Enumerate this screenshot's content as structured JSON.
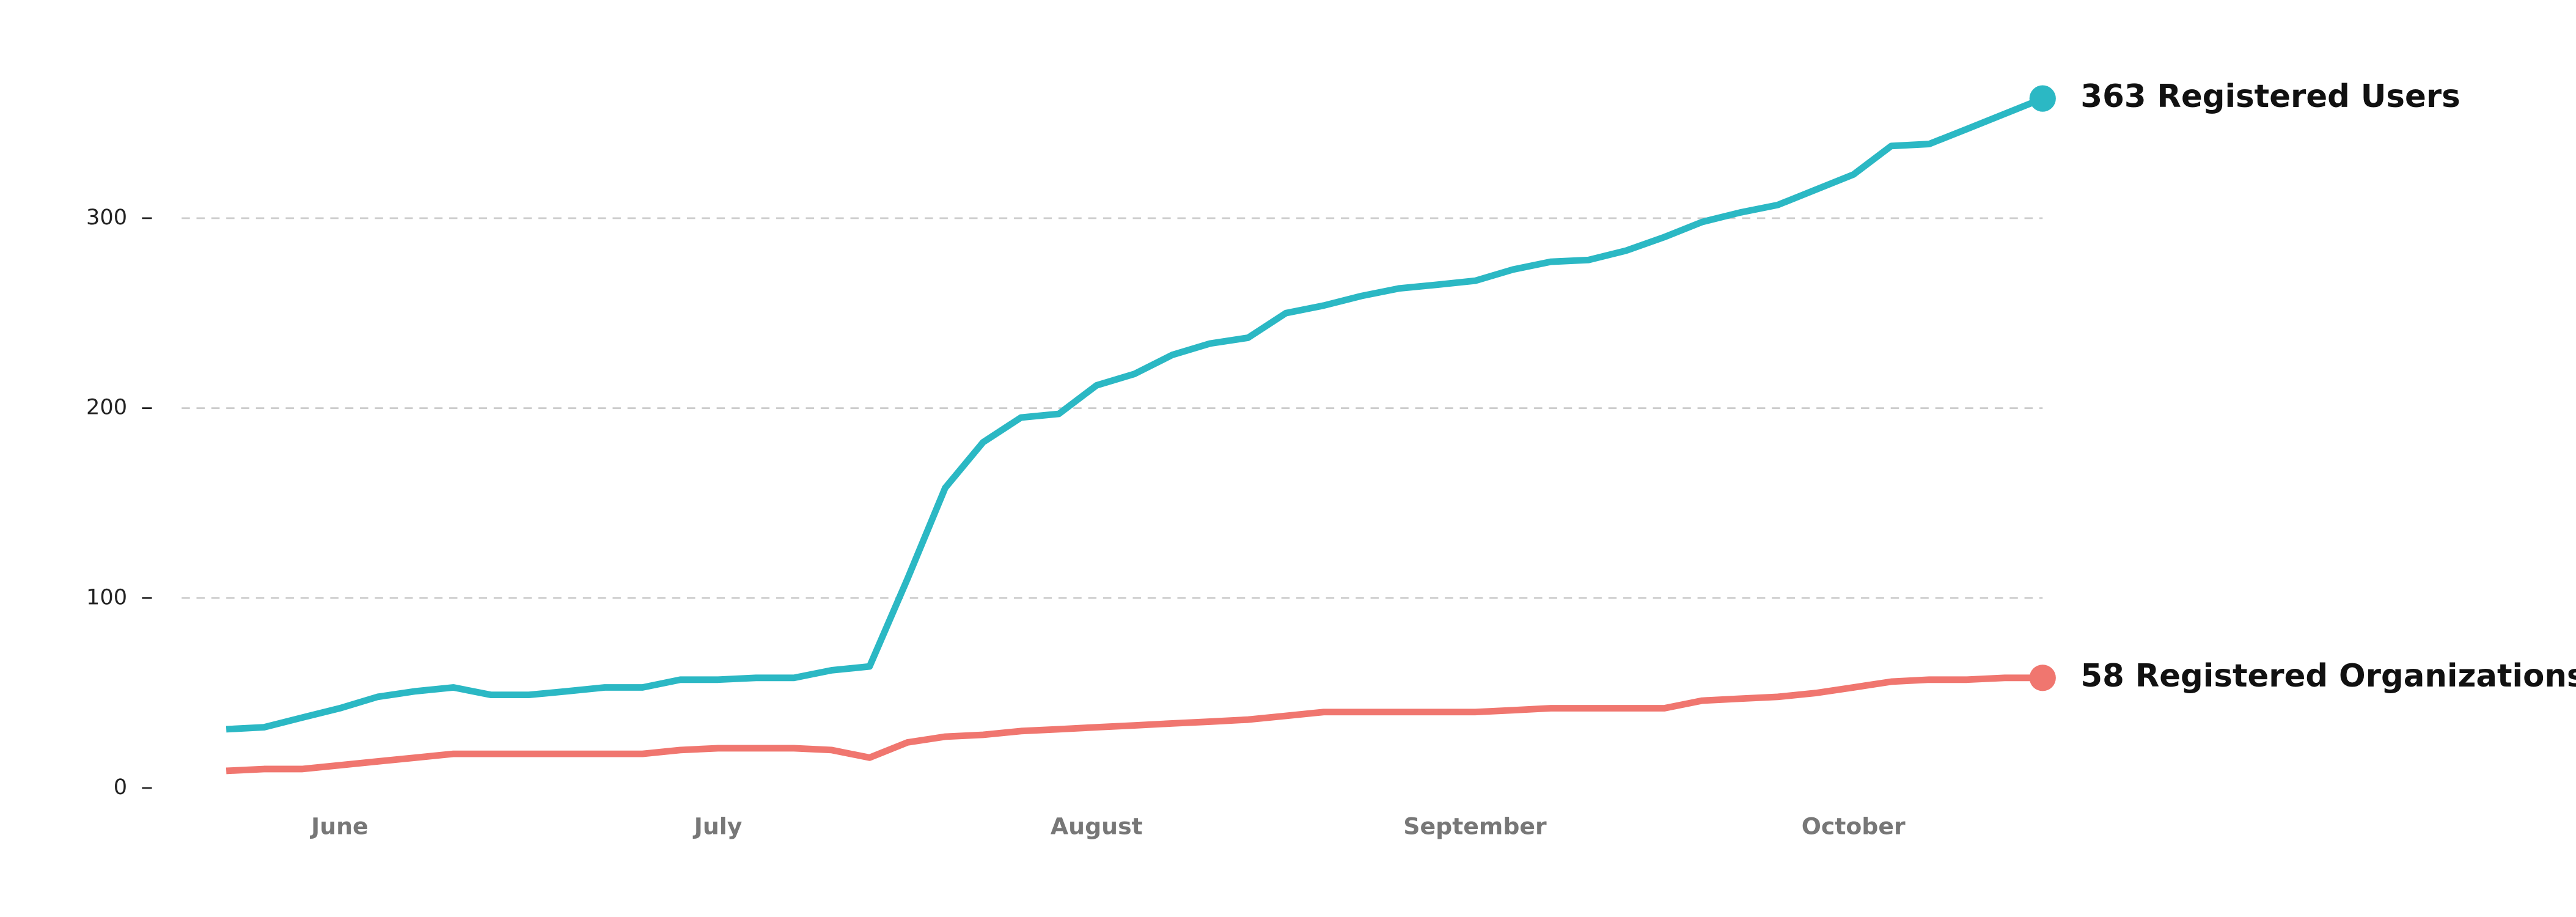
{
  "chart_data": {
    "type": "line",
    "categories": [
      null,
      null,
      null,
      "June",
      null,
      null,
      null,
      null,
      null,
      null,
      null,
      null,
      null,
      "July",
      null,
      null,
      null,
      null,
      null,
      null,
      null,
      null,
      null,
      "August",
      null,
      null,
      null,
      null,
      null,
      null,
      null,
      null,
      null,
      "September",
      null,
      null,
      null,
      null,
      null,
      null,
      null,
      null,
      null,
      "October",
      null,
      null,
      null,
      null,
      null
    ],
    "series": [
      {
        "name": "363 Registered Users",
        "color": "#2bb8c4",
        "values": [
          31,
          32,
          37,
          42,
          48,
          51,
          53,
          49,
          49,
          51,
          53,
          53,
          57,
          57,
          58,
          58,
          62,
          64,
          110,
          158,
          182,
          195,
          197,
          212,
          218,
          228,
          234,
          237,
          250,
          254,
          259,
          263,
          265,
          267,
          273,
          277,
          278,
          283,
          290,
          298,
          303,
          307,
          315,
          323,
          338,
          339,
          347,
          355,
          363
        ]
      },
      {
        "name": "58 Registered Organizations",
        "color": "#f0766f",
        "values": [
          9,
          10,
          10,
          12,
          14,
          16,
          18,
          18,
          18,
          18,
          18,
          18,
          20,
          21,
          21,
          21,
          20,
          16,
          24,
          27,
          28,
          30,
          31,
          32,
          33,
          34,
          35,
          36,
          38,
          40,
          40,
          40,
          40,
          40,
          41,
          42,
          42,
          42,
          42,
          46,
          47,
          48,
          50,
          53,
          56,
          57,
          57,
          58,
          58
        ]
      }
    ],
    "ylim": [
      0,
      380
    ],
    "yticks": [
      0,
      100,
      200,
      300
    ],
    "grid": true
  }
}
